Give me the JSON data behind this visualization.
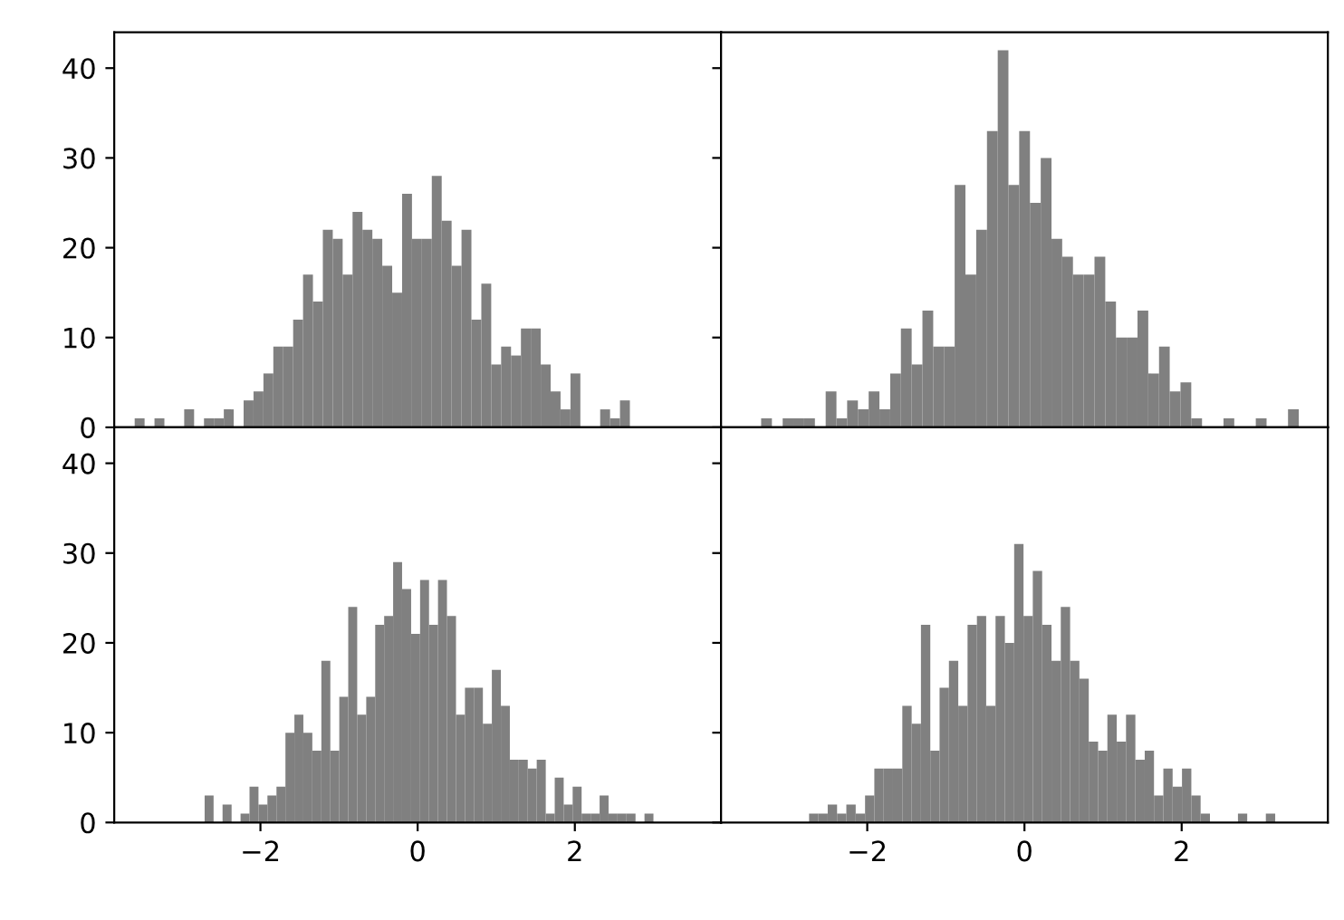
{
  "chart_data": [
    {
      "type": "histogram",
      "color": "#808080",
      "tick_labels": "y",
      "xlim": [
        -3.86,
        3.86
      ],
      "ylim": [
        0,
        44
      ],
      "yticks": [
        0,
        10,
        20,
        30,
        40
      ],
      "bins": [
        -3.6,
        -3.474,
        -3.348,
        -3.222,
        -3.096,
        -2.97,
        -2.844,
        -2.718,
        -2.592,
        -2.466,
        -2.34,
        -2.214,
        -2.088,
        -1.962,
        -1.836,
        -1.71,
        -1.584,
        -1.458,
        -1.332,
        -1.206,
        -1.08,
        -0.954,
        -0.828,
        -0.702,
        -0.576,
        -0.45,
        -0.324,
        -0.198,
        -0.072,
        0.054,
        0.18,
        0.306,
        0.432,
        0.558,
        0.684,
        0.81,
        0.936,
        1.062,
        1.188,
        1.314,
        1.44,
        1.566,
        1.692,
        1.818,
        1.944,
        2.07,
        2.196,
        2.322,
        2.448,
        2.574,
        2.7
      ],
      "values": [
        1,
        0,
        1,
        0,
        0,
        2,
        0,
        1,
        1,
        2,
        0,
        3,
        4,
        6,
        9,
        9,
        12,
        17,
        14,
        22,
        21,
        17,
        24,
        22,
        21,
        18,
        15,
        26,
        21,
        21,
        28,
        23,
        18,
        22,
        12,
        16,
        7,
        9,
        8,
        11,
        11,
        7,
        4,
        2,
        6,
        0,
        0,
        2,
        1,
        3
      ]
    },
    {
      "type": "histogram",
      "color": "#808080",
      "tick_labels": false,
      "xlim": [
        -3.86,
        3.86
      ],
      "ylim": [
        0,
        44
      ],
      "yticks": [
        0,
        10,
        20,
        30,
        40
      ],
      "bins": [
        -3.35,
        -3.213,
        -3.076,
        -2.94,
        -2.803,
        -2.666,
        -2.529,
        -2.392,
        -2.256,
        -2.119,
        -1.982,
        -1.845,
        -1.708,
        -1.572,
        -1.435,
        -1.298,
        -1.161,
        -1.024,
        -0.888,
        -0.751,
        -0.614,
        -0.477,
        -0.34,
        -0.204,
        -0.067,
        0.07,
        0.207,
        0.344,
        0.48,
        0.617,
        0.754,
        0.891,
        1.028,
        1.164,
        1.301,
        1.438,
        1.575,
        1.712,
        1.848,
        1.985,
        2.122,
        2.259,
        2.396,
        2.532,
        2.669,
        2.806,
        2.943,
        3.08,
        3.216,
        3.353,
        3.49
      ],
      "values": [
        1,
        0,
        1,
        1,
        1,
        0,
        4,
        1,
        3,
        2,
        4,
        2,
        6,
        11,
        7,
        13,
        9,
        9,
        27,
        17,
        22,
        33,
        42,
        27,
        33,
        25,
        30,
        21,
        19,
        17,
        17,
        19,
        14,
        10,
        10,
        13,
        6,
        9,
        4,
        5,
        1,
        0,
        0,
        1,
        0,
        0,
        1,
        0,
        0,
        2
      ]
    },
    {
      "type": "histogram",
      "color": "#808080",
      "xlim": [
        -3.86,
        3.86
      ],
      "ylim": [
        0,
        44
      ],
      "xticks": [
        {
          "value": -2,
          "label": "−2"
        },
        0,
        2
      ],
      "yticks": [
        0,
        10,
        20,
        30,
        40
      ],
      "bins": [
        -2.71,
        -2.596,
        -2.482,
        -2.367,
        -2.253,
        -2.139,
        -2.025,
        -1.911,
        -1.796,
        -1.682,
        -1.568,
        -1.454,
        -1.34,
        -1.225,
        -1.111,
        -0.997,
        -0.883,
        -0.769,
        -0.654,
        -0.54,
        -0.426,
        -0.312,
        -0.198,
        -0.083,
        0.031,
        0.145,
        0.259,
        0.373,
        0.488,
        0.602,
        0.716,
        0.83,
        0.944,
        1.059,
        1.173,
        1.287,
        1.401,
        1.515,
        1.63,
        1.744,
        1.858,
        1.972,
        2.086,
        2.201,
        2.315,
        2.429,
        2.543,
        2.657,
        2.772,
        2.886,
        3.0
      ],
      "values": [
        3,
        0,
        2,
        0,
        1,
        4,
        2,
        3,
        4,
        10,
        12,
        10,
        8,
        18,
        8,
        14,
        24,
        12,
        14,
        22,
        23,
        29,
        26,
        21,
        27,
        22,
        27,
        23,
        12,
        15,
        15,
        11,
        17,
        13,
        7,
        7,
        6,
        7,
        1,
        5,
        2,
        4,
        1,
        1,
        3,
        1,
        1,
        1,
        0,
        1
      ]
    },
    {
      "type": "histogram",
      "color": "#808080",
      "tick_labels": "x",
      "xlim": [
        -3.86,
        3.86
      ],
      "ylim": [
        0,
        44
      ],
      "xticks": [
        {
          "value": -2,
          "label": "−2"
        },
        0,
        2
      ],
      "yticks": [
        0,
        10,
        20,
        30,
        40
      ],
      "bins": [
        -2.74,
        -2.621,
        -2.503,
        -2.384,
        -2.266,
        -2.147,
        -2.028,
        -1.91,
        -1.791,
        -1.673,
        -1.554,
        -1.435,
        -1.317,
        -1.198,
        -1.08,
        -0.961,
        -0.842,
        -0.724,
        -0.605,
        -0.487,
        -0.368,
        -0.249,
        -0.131,
        -0.012,
        0.106,
        0.225,
        0.344,
        0.462,
        0.581,
        0.699,
        0.818,
        0.937,
        1.055,
        1.174,
        1.292,
        1.411,
        1.53,
        1.648,
        1.767,
        1.885,
        2.004,
        2.123,
        2.241,
        2.36,
        2.478,
        2.597,
        2.716,
        2.834,
        2.953,
        3.071,
        3.19
      ],
      "values": [
        1,
        1,
        2,
        1,
        2,
        1,
        3,
        6,
        6,
        6,
        13,
        11,
        22,
        8,
        15,
        18,
        13,
        22,
        23,
        13,
        23,
        20,
        31,
        23,
        28,
        22,
        18,
        24,
        18,
        16,
        9,
        8,
        12,
        9,
        12,
        7,
        8,
        3,
        6,
        4,
        6,
        3,
        1,
        0,
        0,
        0,
        1,
        0,
        0,
        1
      ]
    }
  ]
}
